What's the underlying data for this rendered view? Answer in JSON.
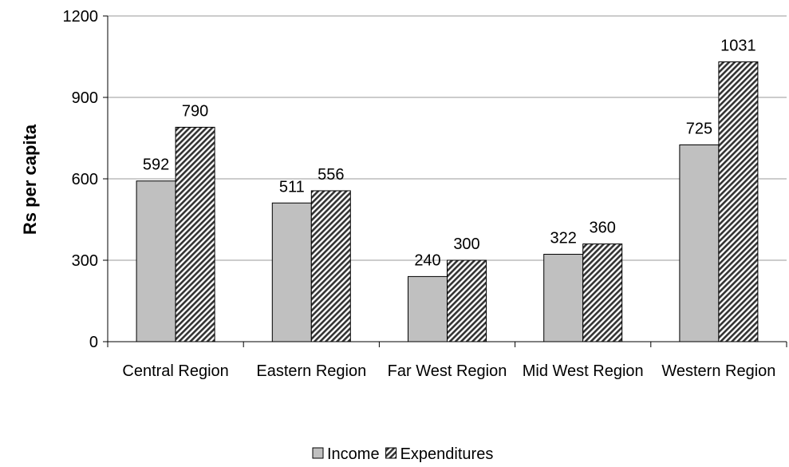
{
  "chart_data": {
    "type": "bar",
    "y_label": "Rs per capita",
    "categories": [
      "Central Region",
      "Eastern Region",
      "Far West Region",
      "Mid West Region",
      "Western Region"
    ],
    "series": [
      {
        "name": "Income",
        "color": "#c0c0c0",
        "pattern": "solid",
        "values": [
          592,
          511,
          240,
          322,
          725
        ]
      },
      {
        "name": "Expenditures",
        "color": "#333333",
        "pattern": "hatch",
        "values": [
          790,
          556,
          300,
          360,
          1031
        ]
      }
    ],
    "ylim": [
      0,
      1200
    ],
    "yticks": [
      0,
      300,
      600,
      900,
      1200
    ],
    "grid": true,
    "legend": "bottom"
  }
}
